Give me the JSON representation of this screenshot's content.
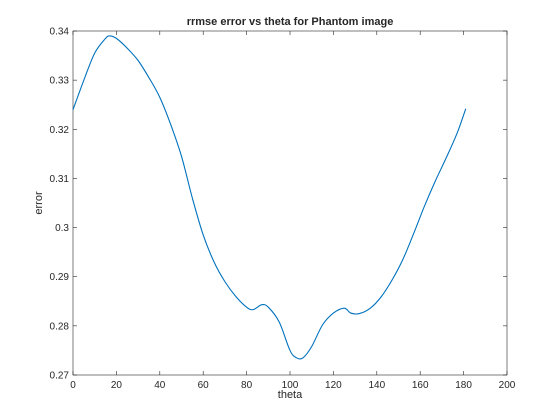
{
  "chart_data": {
    "type": "line",
    "title": "rrmse error vs theta for Phantom image",
    "xlabel": "theta",
    "ylabel": "error",
    "xlim": [
      0,
      200
    ],
    "ylim": [
      0.27,
      0.34
    ],
    "xticks": [
      0,
      20,
      40,
      60,
      80,
      100,
      120,
      140,
      160,
      180,
      200
    ],
    "yticks": [
      0.27,
      0.28,
      0.29,
      0.3,
      0.31,
      0.32,
      0.33,
      0.34
    ],
    "ytick_labels": [
      "0.27",
      "0.28",
      "0.29",
      "0.3",
      "0.31",
      "0.32",
      "0.33",
      "0.34"
    ],
    "grid": false,
    "line_color": "#0072BD",
    "series": [
      {
        "x": [
          0,
          5,
          10,
          15,
          17,
          20,
          25,
          30,
          35,
          40,
          45,
          50,
          55,
          60,
          65,
          70,
          75,
          80,
          83,
          87,
          90,
          95,
          100,
          103,
          106,
          110,
          115,
          120,
          125,
          128,
          132,
          137,
          142,
          147,
          152,
          157,
          162,
          167,
          172,
          177,
          181
        ],
        "y": [
          0.324,
          0.33,
          0.3355,
          0.3385,
          0.339,
          0.3385,
          0.3365,
          0.334,
          0.3305,
          0.3265,
          0.321,
          0.3145,
          0.306,
          0.2985,
          0.293,
          0.289,
          0.286,
          0.2838,
          0.2833,
          0.2843,
          0.2838,
          0.2808,
          0.275,
          0.2735,
          0.2735,
          0.2758,
          0.2802,
          0.2826,
          0.2836,
          0.2826,
          0.2825,
          0.2836,
          0.2859,
          0.2893,
          0.2935,
          0.2988,
          0.3044,
          0.3095,
          0.3142,
          0.3192,
          0.3242
        ]
      }
    ]
  }
}
